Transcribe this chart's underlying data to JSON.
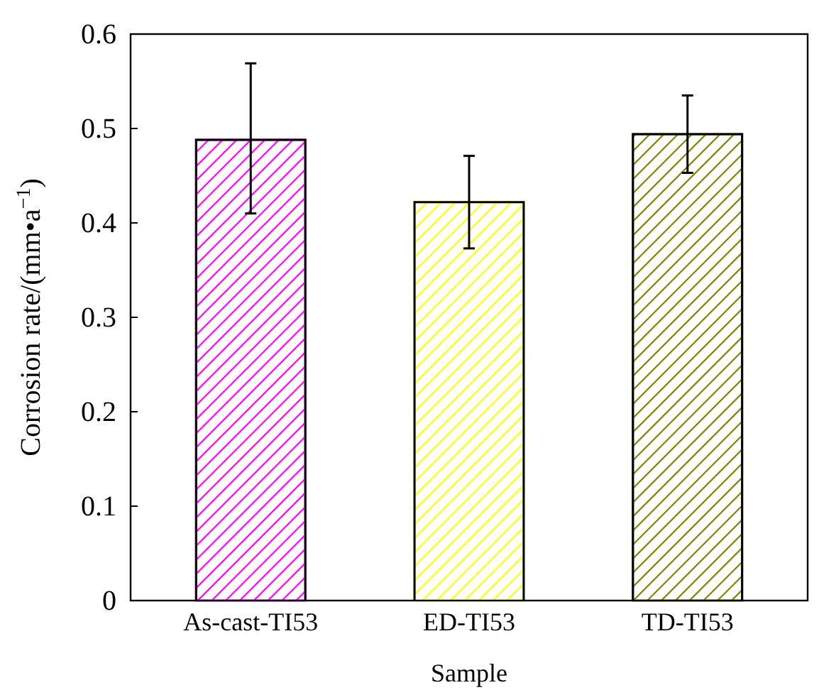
{
  "chart_data": {
    "type": "bar",
    "xlabel": "Sample",
    "ylabel": "Corrosion rate/(mm•a$^{−1}$)",
    "categories": [
      "As-cast-TI53",
      "ED-TI53",
      "TD-TI53"
    ],
    "values": [
      0.488,
      0.422,
      0.494
    ],
    "colors": [
      "#ff00ff",
      "#ffff00",
      "#808000"
    ],
    "errors": [
      [
        0.41,
        0.569
      ],
      [
        0.373,
        0.471
      ],
      [
        0.453,
        0.535
      ]
    ],
    "ylim": [
      0,
      0.6
    ],
    "yticks": [
      {
        "value": 0,
        "label": "0"
      },
      0.1,
      0.2,
      0.3,
      0.4,
      0.5,
      0.6
    ],
    "grid": false
  }
}
